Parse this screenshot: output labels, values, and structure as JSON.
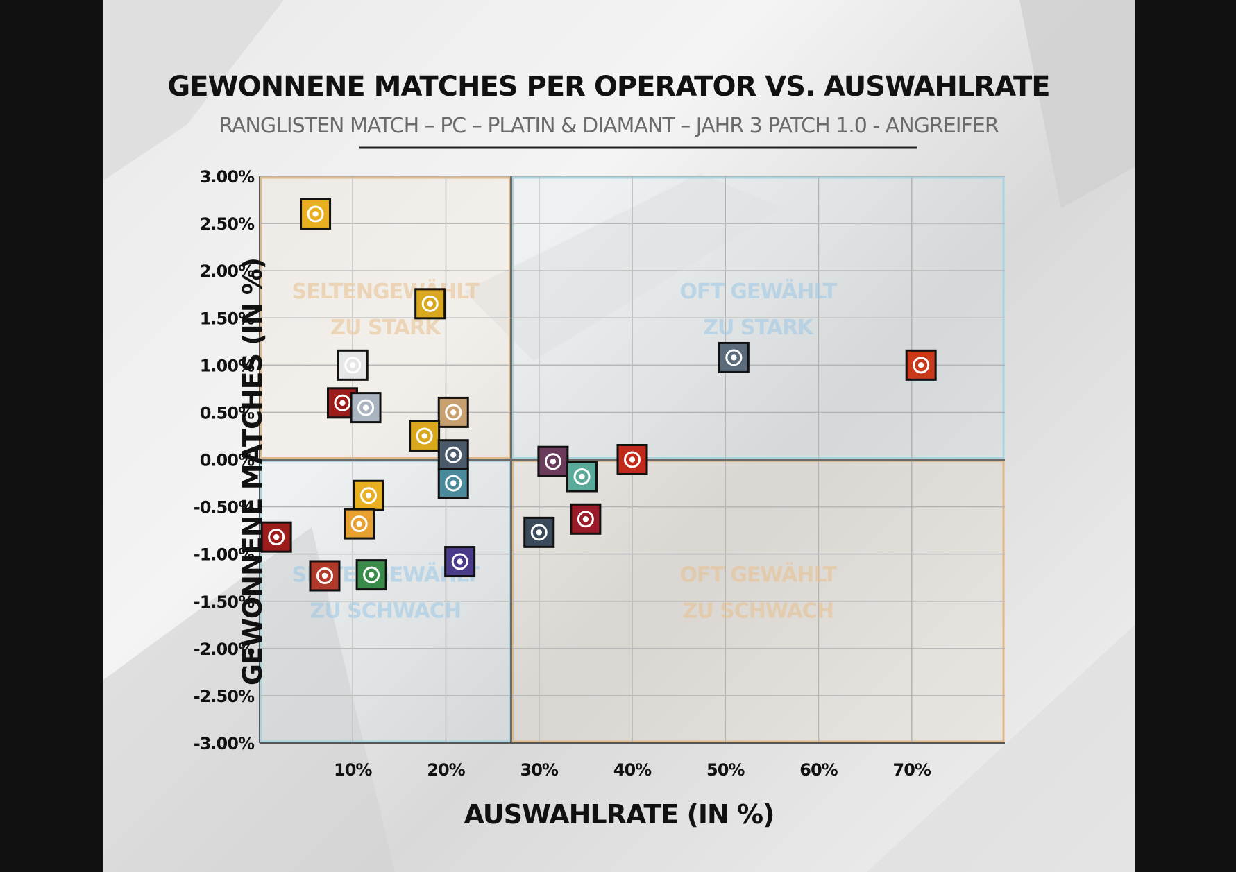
{
  "colors": {
    "orange": "#e0b98a",
    "blue": "#a8d4e0",
    "blue_text": "#9cc8e6",
    "orange_text": "#e8c08c",
    "grid": "#b4b4b4",
    "axis_mid": "#6b6b6b"
  },
  "chart_data": {
    "type": "scatter",
    "title": "GEWONNENE MATCHES PER OPERATOR VS. AUSWAHLRATE",
    "subtitle": "RANGLISTEN MATCH – PC – PLATIN & DIAMANT – JAHR 3 PATCH 1.0 - ANGREIFER",
    "xlabel": "AUSWAHLRATE (IN %)",
    "ylabel": "GEWONNENE MATCHES (IN %)",
    "xlim": [
      0,
      80
    ],
    "ylim": [
      -3,
      3
    ],
    "x_ticks": [
      10,
      20,
      30,
      40,
      50,
      60,
      70
    ],
    "x_tick_labels": [
      "10%",
      "20%",
      "30%",
      "40%",
      "50%",
      "60%",
      "70%"
    ],
    "y_ticks": [
      3,
      2.5,
      2,
      1.5,
      1,
      0.5,
      0,
      -0.5,
      -1,
      -1.5,
      -2,
      -2.5,
      -3
    ],
    "y_tick_labels": [
      "3.00%",
      "2.50%",
      "2.00%",
      "1.50%",
      "1.00%",
      "0.50%",
      "0.00%",
      "-0.50%",
      "-1.00%",
      "-1.50%",
      "-2.00%",
      "-2.50%",
      "-3.00%"
    ],
    "grid": true,
    "x_split": 27,
    "y_split": 0,
    "quadrants": [
      {
        "line1": "SELTENGEWÄHLT",
        "line2": "ZU STARK",
        "position": "top-left",
        "tone": "orange"
      },
      {
        "line1": "OFT GEWÄHLT",
        "line2": "ZU STARK",
        "position": "top-right",
        "tone": "blue"
      },
      {
        "line1": "SELTENGEWÄHLT",
        "line2": "ZU SCHWACH",
        "position": "bottom-left",
        "tone": "blue"
      },
      {
        "line1": "OFT GEWÄHLT",
        "line2": "ZU SCHWACH",
        "position": "bottom-right",
        "tone": "orange"
      }
    ],
    "points": [
      {
        "icon": "fist-icon",
        "x": 6,
        "y": 2.6,
        "color": "#e8b020"
      },
      {
        "icon": "skull-mask-icon",
        "x": 18.3,
        "y": 1.65,
        "color": "#d9a81c"
      },
      {
        "icon": "jester-icon",
        "x": 10,
        "y": 1.0,
        "color": "#e6e6e6"
      },
      {
        "icon": "target-icon",
        "x": 8.9,
        "y": 0.6,
        "color": "#9c1b1b"
      },
      {
        "icon": "shield-doc-icon",
        "x": 11.4,
        "y": 0.55,
        "color": "#a9b4c0"
      },
      {
        "icon": "compass-star-icon",
        "x": 20.8,
        "y": 0.5,
        "color": "#c8a070"
      },
      {
        "icon": "eye-icon",
        "x": 17.7,
        "y": 0.25,
        "color": "#d9a81c"
      },
      {
        "icon": "blade-icon",
        "x": 20.8,
        "y": 0.05,
        "color": "#4a5a6a"
      },
      {
        "icon": "visor-icon",
        "x": 20.8,
        "y": -0.25,
        "color": "#4a8a9a"
      },
      {
        "icon": "lion-icon",
        "x": 11.7,
        "y": -0.38,
        "color": "#e8b020"
      },
      {
        "icon": "flash-icon",
        "x": 10.7,
        "y": -0.68,
        "color": "#e8a030"
      },
      {
        "icon": "grenade-icon",
        "x": 1.8,
        "y": -0.82,
        "color": "#9c1b1b"
      },
      {
        "icon": "cluster-icon",
        "x": 7,
        "y": -1.23,
        "color": "#b03a2a"
      },
      {
        "icon": "crossbow-icon",
        "x": 12,
        "y": -1.22,
        "color": "#3a8a4a"
      },
      {
        "icon": "lens-icon",
        "x": 21.5,
        "y": -1.08,
        "color": "#4a3a8a"
      },
      {
        "icon": "drill-icon",
        "x": 31.5,
        "y": -0.02,
        "color": "#6a3a5a"
      },
      {
        "icon": "angel-icon",
        "x": 34.6,
        "y": -0.18,
        "color": "#5aaa9a"
      },
      {
        "icon": "hexagon-shield-icon",
        "x": 40,
        "y": 0.0,
        "color": "#c02a1a"
      },
      {
        "icon": "flower-icon",
        "x": 35,
        "y": -0.63,
        "color": "#9c1b2b"
      },
      {
        "icon": "power-icon",
        "x": 30,
        "y": -0.77,
        "color": "#3a4a5a"
      },
      {
        "icon": "dome-shield-icon",
        "x": 50.9,
        "y": 1.08,
        "color": "#5a6a7a"
      },
      {
        "icon": "arrow-strike-icon",
        "x": 71,
        "y": 1.0,
        "color": "#c83a1a"
      }
    ]
  }
}
